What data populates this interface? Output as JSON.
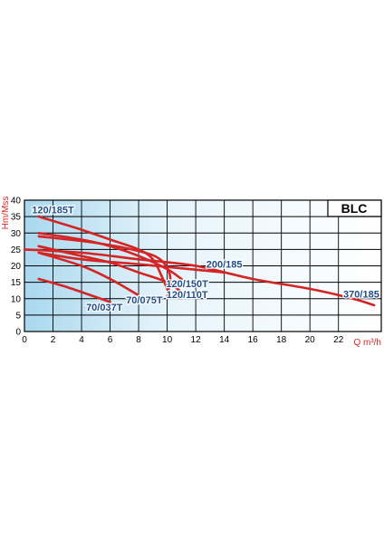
{
  "chart_data": {
    "type": "line",
    "title": "BLC",
    "xlabel": "Q m³/h",
    "ylabel": "Hm/Mss",
    "xlim": [
      0,
      25
    ],
    "ylim": [
      0,
      40
    ],
    "x_ticks": [
      0,
      2,
      4,
      6,
      8,
      10,
      12,
      14,
      16,
      18,
      20,
      22
    ],
    "y_ticks": [
      0,
      5,
      10,
      15,
      20,
      25,
      30,
      35,
      40
    ],
    "grid": true,
    "line_color": "#d42424",
    "label_color": "#1f4e8a",
    "series": [
      {
        "name": "120/185T",
        "x": [
          1,
          4,
          6,
          8,
          9,
          9.6,
          10
        ],
        "y": [
          35,
          31,
          28,
          25,
          22,
          17,
          13
        ]
      },
      {
        "name": "120/150T",
        "x": [
          1,
          4,
          6,
          8,
          10,
          11
        ],
        "y": [
          30,
          28,
          26,
          23,
          19,
          16
        ]
      },
      {
        "name": "120/110T",
        "x": [
          1,
          4,
          6,
          8,
          10,
          11
        ],
        "y": [
          26,
          23,
          21,
          18,
          15,
          12
        ]
      },
      {
        "name": "200/185",
        "x": [
          1,
          5,
          8,
          9.5,
          10.2,
          10
        ],
        "y": [
          29,
          27,
          24.5,
          22,
          17,
          11
        ]
      },
      {
        "name": "370/185",
        "x": [
          0,
          4,
          8,
          12,
          16,
          20,
          23,
          24.5
        ],
        "y": [
          25,
          24,
          22,
          20,
          16,
          13,
          10,
          8
        ]
      },
      {
        "name": "70/037T",
        "x": [
          1,
          3,
          5,
          6
        ],
        "y": [
          16,
          13.5,
          10.5,
          9
        ]
      },
      {
        "name": "70/075T",
        "x": [
          1,
          4,
          6,
          8
        ],
        "y": [
          24,
          20,
          16,
          11
        ]
      },
      {
        "name": "",
        "x": [
          1,
          4,
          8,
          14
        ],
        "y": [
          24,
          22,
          20.5,
          18
        ]
      }
    ],
    "annotations": [
      {
        "text": "120/185T",
        "x": 2,
        "y": 36
      },
      {
        "text": "200/185",
        "x": 14,
        "y": 19.5
      },
      {
        "text": "120/150T",
        "x": 11.4,
        "y": 13.5
      },
      {
        "text": "120/110T",
        "x": 11.4,
        "y": 10.2
      },
      {
        "text": "70/075T",
        "x": 8.4,
        "y": 8.5
      },
      {
        "text": "70/037T",
        "x": 5.6,
        "y": 6.3
      },
      {
        "text": "370/185",
        "x": 23.6,
        "y": 10.3
      }
    ]
  }
}
